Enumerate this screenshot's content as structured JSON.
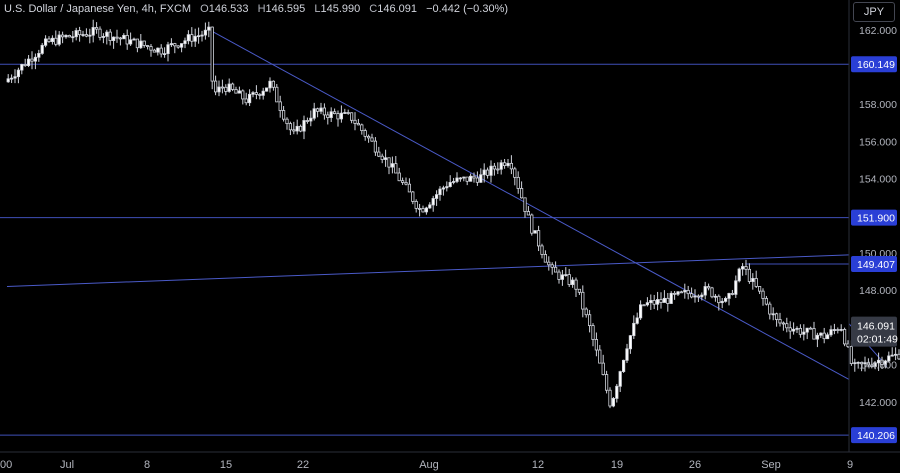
{
  "header": {
    "symbol": "U.S. Dollar / Japanese Yen, 4h, FXCM",
    "open_label": "O",
    "open": "146.533",
    "high_label": "H",
    "high": "146.595",
    "low_label": "L",
    "low": "145.990",
    "close_label": "C",
    "close": "146.091",
    "change": "−0.442 (−0.30%)"
  },
  "currency_button": "JPY",
  "chart_data": {
    "type": "candlestick",
    "y_ticks": [
      "162.000",
      "160.000",
      "158.000",
      "156.000",
      "154.000",
      "152.000",
      "150.000",
      "148.000",
      "146.000",
      "144.000",
      "142.000"
    ],
    "ylim": [
      139.3,
      163.6
    ],
    "x_ticks": [
      {
        "label": "00",
        "pos": 0
      },
      {
        "label": "Jul",
        "pos": 1
      },
      {
        "label": "8",
        "pos": 2
      },
      {
        "label": "15",
        "pos": 3
      },
      {
        "label": "22",
        "pos": 4
      },
      {
        "label": "Aug",
        "pos": 5
      },
      {
        "label": "12",
        "pos": 6
      },
      {
        "label": "19",
        "pos": 7
      },
      {
        "label": "26",
        "pos": 8
      },
      {
        "label": "Sep",
        "pos": 9
      },
      {
        "label": "9",
        "pos": 10
      }
    ],
    "horizontal_levels": [
      {
        "value": 160.149,
        "label": "160.149"
      },
      {
        "value": 151.9,
        "label": "151.900"
      },
      {
        "value": 149.407,
        "label": "149.407"
      },
      {
        "value": 140.206,
        "label": "140.206"
      }
    ],
    "current_price": {
      "value": 146.091,
      "label": "146.091",
      "countdown": "02:01:49"
    },
    "price_path": [
      [
        0,
        159.2
      ],
      [
        0.7,
        161.3
      ],
      [
        1.0,
        161.6
      ],
      [
        1.4,
        161.9
      ],
      [
        1.8,
        161.4
      ],
      [
        2.2,
        160.9
      ],
      [
        2.6,
        161.6
      ],
      [
        2.83,
        161.9
      ],
      [
        2.86,
        158.5
      ],
      [
        3.0,
        159.0
      ],
      [
        3.3,
        158.2
      ],
      [
        3.6,
        159.1
      ],
      [
        3.9,
        156.3
      ],
      [
        4.1,
        157.6
      ],
      [
        4.4,
        157.3
      ],
      [
        4.7,
        154.8
      ],
      [
        4.95,
        152.3
      ],
      [
        5.2,
        153.8
      ],
      [
        5.5,
        154.1
      ],
      [
        5.76,
        155.1
      ],
      [
        5.95,
        151.5
      ],
      [
        6.2,
        149.0
      ],
      [
        6.5,
        148.3
      ],
      [
        6.68,
        146.0
      ],
      [
        6.95,
        141.8
      ],
      [
        7.15,
        145.0
      ],
      [
        7.35,
        147.2
      ],
      [
        7.6,
        147.4
      ],
      [
        7.9,
        147.8
      ],
      [
        8.2,
        148.0
      ],
      [
        8.45,
        147.3
      ],
      [
        8.65,
        149.3
      ],
      [
        8.85,
        148.0
      ],
      [
        9.1,
        146.3
      ],
      [
        9.4,
        145.8
      ],
      [
        9.7,
        145.5
      ],
      [
        9.9,
        146.1
      ],
      [
        10.05,
        143.8
      ],
      [
        10.35,
        144.2
      ],
      [
        10.6,
        144.5
      ],
      [
        10.85,
        145.1
      ],
      [
        11.1,
        146.2
      ],
      [
        11.28,
        147.0
      ],
      [
        11.45,
        146.3
      ]
    ],
    "trendlines": [
      {
        "from": [
          2.83,
          161.9
        ],
        "to": [
          11.03,
          143.2
        ]
      },
      {
        "from": [
          0,
          148.2
        ],
        "to": [
          12.2,
          149.9
        ]
      },
      {
        "from": [
          10.45,
          143.9
        ],
        "to": [
          11.75,
          146.2
        ]
      }
    ]
  }
}
